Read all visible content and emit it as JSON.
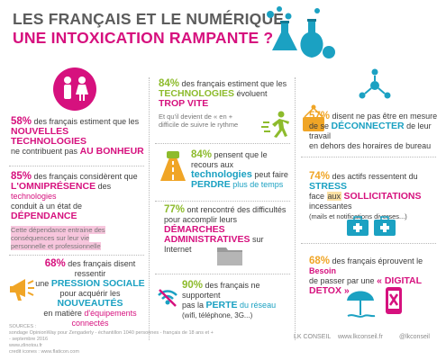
{
  "title": {
    "line1": "LES FRANÇAIS ET LE NUMÉRIQUE",
    "line2": "UNE INTOXICATION RAMPANTE ?"
  },
  "colors": {
    "pink": "#d6117e",
    "green": "#8dbb2c",
    "blue": "#1ba1c2",
    "orange": "#f0a526",
    "grey": "#5c5c5c"
  },
  "icons": [
    "lab-flasks-icon",
    "men-women-icon",
    "hanging-sign-icon",
    "car-highway-icon",
    "network-nodes-icon",
    "first-aid-kit-icon",
    "folder-icon",
    "phone-icon",
    "megaphone-icon",
    "speed-runner-icon",
    "no-wifi-icon",
    "beach-umbrella-icon",
    "crossed-phone-icon"
  ],
  "stats": {
    "s1": {
      "pct": "58%",
      "a": " des français estiment que les",
      "b": "NOUVELLES TECHNOLOGIES",
      "c": "ne contribuent pas ",
      "d": "AU BONHEUR"
    },
    "s2": {
      "pct": "85%",
      "a": " des français considèrent que",
      "b": "L'OMNIPRÉSENCE",
      "c": " des ",
      "d": "technologies",
      "e": "conduit à un état de ",
      "f": "DÉPENDANCE",
      "note1": "Cette dépendance entraine des",
      "note2": "conséquences sur leur vie",
      "note3": "personnelle et professionnelle"
    },
    "s3": {
      "pct": "68%",
      "a": " des français disent ressentir",
      "b": "une ",
      "c": "PRESSION SOCIALE",
      "d": "pour acquérir les ",
      "e": "NOUVEAUTÉS",
      "f": "en matière ",
      "g": "d'équipements connectés"
    },
    "s4": {
      "pct": "84%",
      "a": " des français estiment que les",
      "b": "TECHNOLOGIES",
      "c": " évoluent ",
      "d": "TROP VITE",
      "note1": "Et qu'il devient de « en +",
      "note2": "difficile de suivre le rythme"
    },
    "s5": {
      "pct": "84%",
      "a": " pensent que le recours aux",
      "b": "technologies",
      "c": " peut faire",
      "d": "PERDRE",
      "e": " plus de temps"
    },
    "s6": {
      "pct": "77%",
      "a": " ont rencontré des difficultés",
      "b": "pour accomplir leurs ",
      "c": "DÉMARCHES",
      "d": "ADMINISTRATIVES",
      "e": " sur Internet"
    },
    "s7": {
      "pct": "90%",
      "a": " des français ne supportent",
      "b": "pas la ",
      "c": "PERTE",
      "d": " du réseau",
      "e": "(wifi, téléphone, 3G...)"
    },
    "s8": {
      "pct": "57%",
      "a": " disent ne pas être en mesure",
      "b": "de se ",
      "c": "DÉCONNECTER",
      "d": " de leur travail",
      "e": "en dehors des horaires de bureau"
    },
    "s9": {
      "pct": "74%",
      "a": " des actifs ressentent du ",
      "b": "STRESS",
      "c": "face ",
      "d": "aux",
      "e": "SOLLICITATIONS",
      "f": " incessantes",
      "g": "(mails et notifications diverses...)"
    },
    "s10": {
      "pct": "68%",
      "a": " des français éprouvent le ",
      "b": "Besoin",
      "c": "de passer par une ",
      "d": "« DIGITAL DETOX »"
    }
  },
  "footer": {
    "l1": "SOURCES :",
    "l2": "sondage OpinionWay pour Zengaderly - échantillon 1040 personnes - français de 18 ans et + - septembre 2016",
    "l3": "www.zlinotou.fr",
    "l4": "credit icones : www.flaticon.com",
    "brand1": "LK CONSEIL",
    "brand2": "www.lkconseil.fr",
    "brand3": "@lkconseil"
  }
}
